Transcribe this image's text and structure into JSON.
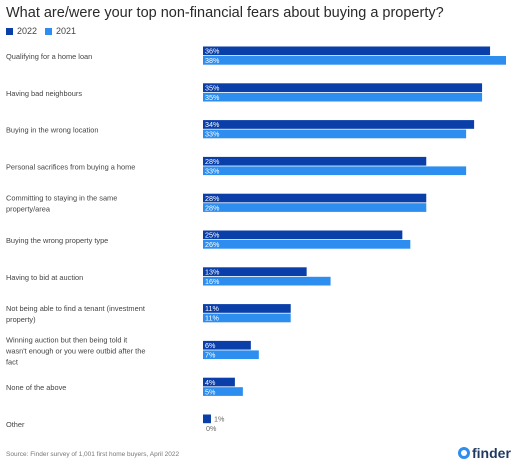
{
  "chart_data": {
    "type": "bar",
    "orientation": "horizontal",
    "title": "What are/were your top non-financial fears about buying a property?",
    "categories": [
      "Qualifying for a home loan",
      "Having bad neighbours",
      "Buying in the wrong location",
      "Personal sacrifices from buying a home",
      "Committing to staying in the same property/area",
      "Buying the wrong property type",
      "Having to bid at auction",
      "Not being able to find a tenant (investment property)",
      "Winning auction but then being told it wasn't enough or you were outbid after the fact",
      "None of the above",
      "Other"
    ],
    "series": [
      {
        "name": "2022",
        "color": "#0a3ea8",
        "values": [
          36,
          35,
          34,
          28,
          28,
          25,
          13,
          11,
          6,
          4,
          1
        ],
        "labels": [
          "36%",
          "35%",
          "34%",
          "28%",
          "28%",
          "25%",
          "13%",
          "11%",
          "6%",
          "4%",
          "1%"
        ]
      },
      {
        "name": "2021",
        "color": "#2d8ef0",
        "values": [
          38,
          35,
          33,
          33,
          28,
          26,
          16,
          11,
          7,
          5,
          0
        ],
        "labels": [
          "38%",
          "35%",
          "33%",
          "33%",
          "28%",
          "26%",
          "16%",
          "11%",
          "7%",
          "5%",
          "0%"
        ]
      }
    ],
    "xlim": [
      0,
      38
    ],
    "grid": false,
    "legend": "top-left"
  },
  "source": "Source: Finder survey of 1,001 first home buyers, April 2022",
  "brand": "finder"
}
